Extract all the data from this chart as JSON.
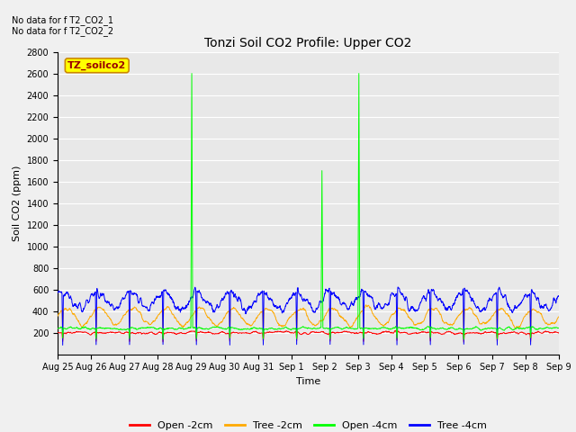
{
  "title": "Tonzi Soil CO2 Profile: Upper CO2",
  "ylabel": "Soil CO2 (ppm)",
  "xlabel": "Time",
  "no_data_text_1": "No data for f T2_CO2_1",
  "no_data_text_2": "No data for f T2_CO2_2",
  "legend_box_label": "TZ_soilco2",
  "legend_box_color": "#ffff00",
  "legend_box_text_color": "#990000",
  "ylim": [
    0,
    2800
  ],
  "yticks": [
    200,
    400,
    600,
    800,
    1000,
    1200,
    1400,
    1600,
    1800,
    2000,
    2200,
    2400,
    2600,
    2800
  ],
  "series": [
    {
      "label": "Open -2cm",
      "color": "#ff0000"
    },
    {
      "label": "Tree -2cm",
      "color": "#ffaa00"
    },
    {
      "label": "Open -4cm",
      "color": "#00ff00"
    },
    {
      "label": "Tree -4cm",
      "color": "#0000ff"
    }
  ],
  "plot_bg_color": "#e8e8e8",
  "fig_bg_color": "#f0f0f0",
  "grid_color": "#ffffff",
  "xtick_labels": [
    "Aug 25",
    "Aug 26",
    "Aug 27",
    "Aug 28",
    "Aug 29",
    "Aug 30",
    "Aug 31",
    "Sep 1",
    "Sep 2",
    "Sep 3",
    "Sep 4",
    "Sep 5",
    "Sep 6",
    "Sep 7",
    "Sep 8",
    "Sep 9"
  ],
  "n_days": 15,
  "ppd": 144,
  "seed": 7
}
